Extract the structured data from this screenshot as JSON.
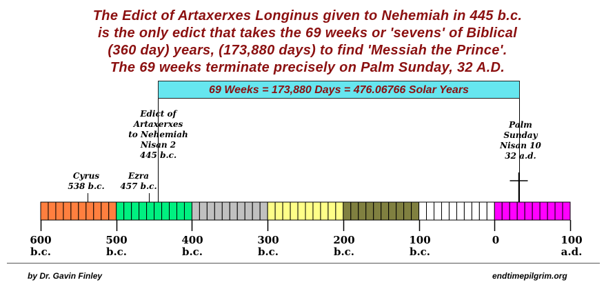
{
  "title_lines": [
    "The Edict of Artaxerxes Longinus given to Nehemiah in 445 b.c.",
    "is the only edict that takes the 69 weeks or 'sevens' of Biblical",
    "(360 day) years, (173,880 days) to find 'Messiah the Prince'.",
    "The 69 weeks terminate precisely on Palm Sunday, 32 A.D."
  ],
  "span_box_text": "69 Weeks = 173,880 Days = 476.06766 Solar Years",
  "annotations": {
    "edict": [
      "Edict of",
      "Artaxerxes",
      "to Nehemiah",
      "Nisan 2",
      "445 b.c."
    ],
    "palm": [
      "Palm",
      "Sunday",
      "Nisan 10",
      "32 a.d."
    ],
    "cyrus": [
      "Cyrus",
      "538 b.c."
    ],
    "ezra": [
      "Ezra",
      "457 b.c."
    ]
  },
  "timeline": {
    "start_year": -600,
    "end_year": 100,
    "segment_years": 10,
    "century_colors": [
      "#ff7f3f",
      "#00f080",
      "#c0c0c0",
      "#ffff88",
      "#808040",
      "#ffffff",
      "#ff00ff"
    ],
    "events": {
      "cyrus": -538,
      "ezra": -457,
      "edict": -445,
      "palm_sunday": 32
    }
  },
  "tick_labels": [
    {
      "num": "600",
      "era": "b.c."
    },
    {
      "num": "500",
      "era": "b.c."
    },
    {
      "num": "400",
      "era": "b.c."
    },
    {
      "num": "300",
      "era": "b.c."
    },
    {
      "num": "200",
      "era": "b.c."
    },
    {
      "num": "100",
      "era": "b.c."
    },
    {
      "num": "0",
      "era": ""
    },
    {
      "num": "100",
      "era": "a.d."
    }
  ],
  "footer": {
    "author": "by Dr. Gavin Finley",
    "site": "endtimepilgrim.org"
  }
}
